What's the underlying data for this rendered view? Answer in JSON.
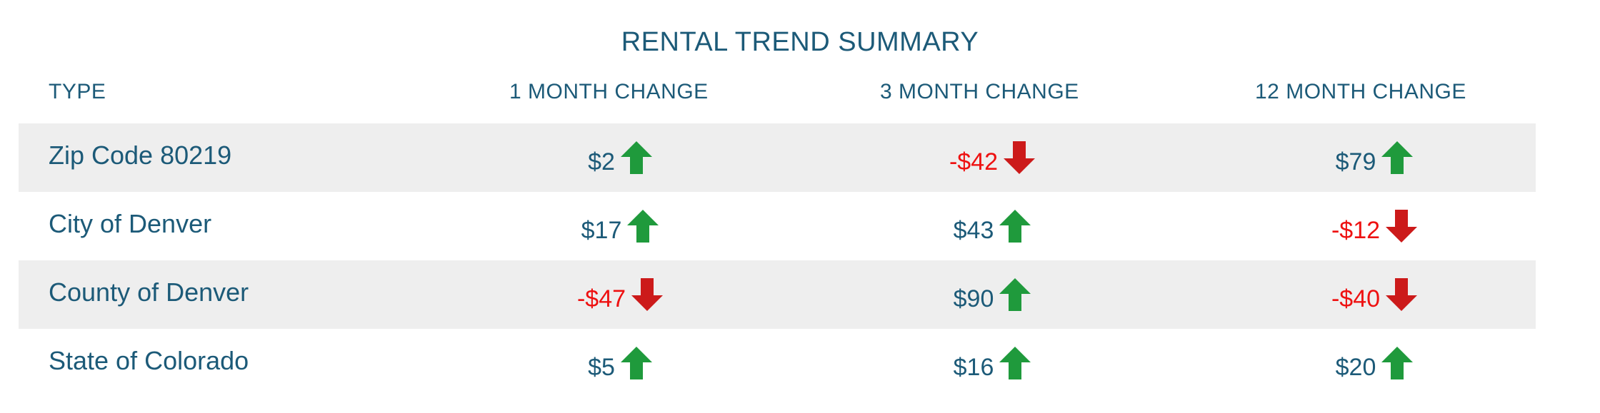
{
  "title": "RENTAL TREND SUMMARY",
  "headers": {
    "type": "TYPE",
    "m1": "1 MONTH CHANGE",
    "m3": "3 MONTH CHANGE",
    "m12": "12 MONTH CHANGE"
  },
  "colors": {
    "text": "#1c5a78",
    "negative": "#ee1111",
    "arrow_up": "#1f9a3c",
    "arrow_down": "#cc1a1a",
    "row_shade": "#eeeeee"
  },
  "rows": [
    {
      "type": "Zip Code 80219",
      "m1": {
        "text": "$2",
        "dir": "up"
      },
      "m3": {
        "text": "-$42",
        "dir": "down"
      },
      "m12": {
        "text": "$79",
        "dir": "up"
      }
    },
    {
      "type": "City of Denver",
      "m1": {
        "text": "$17",
        "dir": "up"
      },
      "m3": {
        "text": "$43",
        "dir": "up"
      },
      "m12": {
        "text": "-$12",
        "dir": "down"
      }
    },
    {
      "type": "County of Denver",
      "m1": {
        "text": "-$47",
        "dir": "down"
      },
      "m3": {
        "text": "$90",
        "dir": "up"
      },
      "m12": {
        "text": "-$40",
        "dir": "down"
      }
    },
    {
      "type": "State of Colorado",
      "m1": {
        "text": "$5",
        "dir": "up"
      },
      "m3": {
        "text": "$16",
        "dir": "up"
      },
      "m12": {
        "text": "$20",
        "dir": "up"
      }
    }
  ]
}
